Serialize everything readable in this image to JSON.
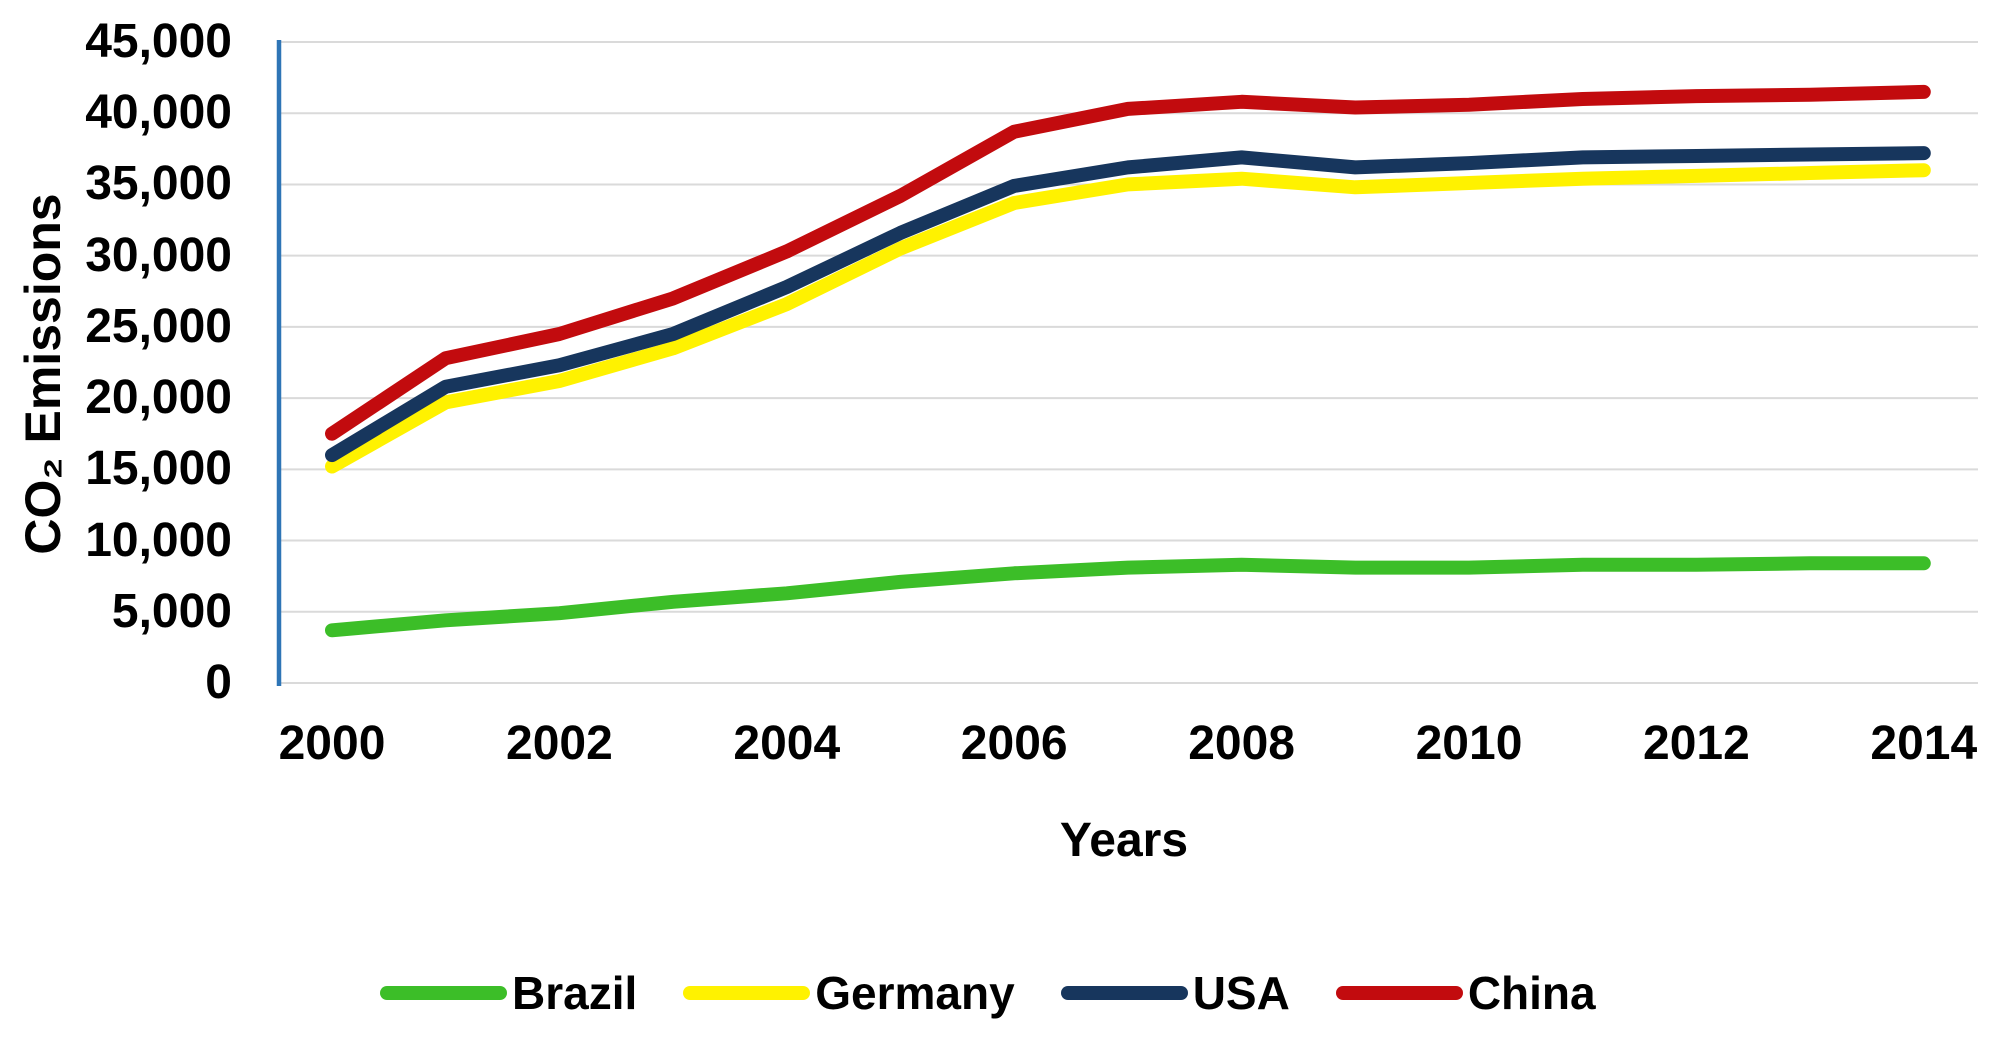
{
  "chart_data": {
    "type": "line",
    "title": "",
    "xlabel": "Years",
    "ylabel": "CO₂ Emissions",
    "x": [
      2000,
      2001,
      2002,
      2003,
      2004,
      2005,
      2006,
      2007,
      2008,
      2009,
      2010,
      2011,
      2012,
      2013,
      2014
    ],
    "xtick_labels": [
      "2000",
      "2002",
      "2004",
      "2006",
      "2008",
      "2010",
      "2012",
      "2014"
    ],
    "ytick_labels": [
      "45,000",
      "40,000",
      "35,000",
      "30,000",
      "25,000",
      "20,000",
      "15,000",
      "10,000",
      "5,000",
      "0"
    ],
    "ylim": [
      0,
      45000
    ],
    "ytick_step": 5000,
    "grid": "horizontal",
    "legend_position": "bottom",
    "series": [
      {
        "name": "Brazil",
        "color": "#3CBE28",
        "values": [
          3700,
          4400,
          4900,
          5700,
          6300,
          7100,
          7700,
          8100,
          8300,
          8100,
          8100,
          8300,
          8300,
          8400,
          8400
        ]
      },
      {
        "name": "Germany",
        "color": "#FFF200",
        "values": [
          15200,
          19700,
          21200,
          23500,
          26600,
          30500,
          33700,
          35000,
          35400,
          34800,
          35100,
          35400,
          35600,
          35800,
          36000
        ]
      },
      {
        "name": "USA",
        "color": "#17365D",
        "values": [
          16000,
          20800,
          22300,
          24500,
          27800,
          31600,
          34900,
          36200,
          36900,
          36200,
          36500,
          36900,
          37000,
          37100,
          37200
        ]
      },
      {
        "name": "China",
        "color": "#C20B0E",
        "values": [
          17500,
          22800,
          24500,
          27000,
          30300,
          34200,
          38700,
          40300,
          40800,
          40400,
          40600,
          41000,
          41200,
          41300,
          41500
        ]
      }
    ],
    "colors": {
      "axis_line": "#2E75B6",
      "gridline": "#DADADA",
      "text": "#000000",
      "background": "#FFFFFF"
    }
  }
}
